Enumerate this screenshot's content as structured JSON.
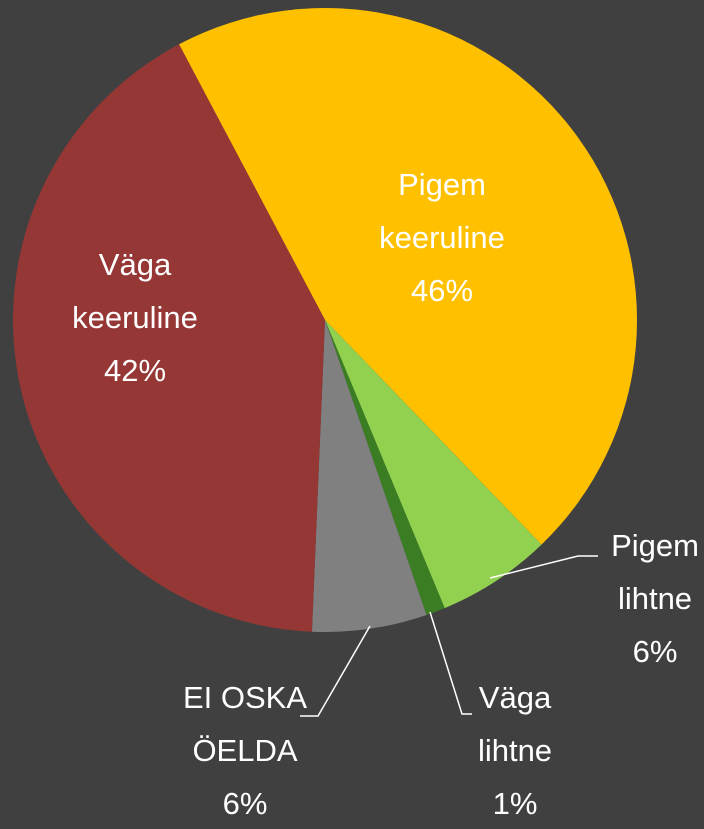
{
  "chart_data": {
    "type": "pie",
    "categories": [
      "Pigem keeruline",
      "Pigem lihtne",
      "Väga lihtne",
      "EI OSKA ÖELDA",
      "Väga keeruline"
    ],
    "values": [
      46,
      6,
      1,
      6,
      42
    ],
    "value_labels": [
      "46%",
      "6%",
      "1%",
      "6%",
      "42%"
    ],
    "colors": [
      "#FFC000",
      "#92D050",
      "#3A7D22",
      "#808080",
      "#953735"
    ]
  }
}
